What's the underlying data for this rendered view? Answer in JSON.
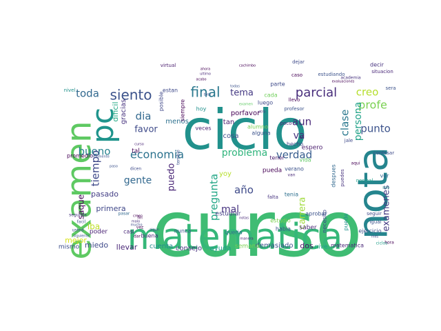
{
  "words": [
    {
      "text": "curso",
      "color": "#3fbc73"
    },
    {
      "text": "ciclo",
      "color": "#21918c"
    },
    {
      "text": "matematica",
      "color": "#35b779"
    },
    {
      "text": "examen",
      "color": "#5ec962"
    },
    {
      "text": "nota",
      "color": "#25858e"
    },
    {
      "text": "pc",
      "color": "#1f948c"
    },
    {
      "text": "siento",
      "color": "#3b528b"
    },
    {
      "text": "final",
      "color": "#2a788e"
    },
    {
      "text": "economia",
      "color": "#2c728e"
    },
    {
      "text": "parcial",
      "color": "#472d7b"
    },
    {
      "text": "bueno",
      "color": "#26828e"
    },
    {
      "text": "toda",
      "color": "#31688e"
    },
    {
      "text": "dia",
      "color": "#31688e"
    },
    {
      "text": "tema",
      "color": "#443983"
    },
    {
      "text": "favor",
      "color": "#3e4a89"
    },
    {
      "text": "problema",
      "color": "#2fb47c"
    },
    {
      "text": "verdad",
      "color": "#365c8d"
    },
    {
      "text": "aun",
      "color": "#482878"
    },
    {
      "text": "va",
      "color": "#46327e"
    },
    {
      "text": "profe",
      "color": "#7ad151"
    },
    {
      "text": "creo",
      "color": "#b5de2b"
    },
    {
      "text": "clase",
      "color": "#2a788e"
    },
    {
      "text": "persona",
      "color": "#1fa187"
    },
    {
      "text": "punto",
      "color": "#3b528b"
    },
    {
      "text": "pregunta",
      "color": "#21a685"
    },
    {
      "text": "carrera",
      "color": "#9fda3a"
    },
    {
      "text": "examenes",
      "color": "#443a83"
    },
    {
      "text": "gente",
      "color": "#31688e"
    },
    {
      "text": "año",
      "color": "#3e4a89"
    },
    {
      "text": "mal",
      "color": "#46337f"
    },
    {
      "text": "tiempo",
      "color": "#3e4989"
    },
    {
      "text": "puedo",
      "color": "#482475"
    },
    {
      "text": "saque",
      "color": "#440154"
    },
    {
      "text": "pasado",
      "color": "#433e85"
    },
    {
      "text": "primera",
      "color": "#3f4788"
    },
    {
      "text": "iba",
      "color": "#bddf26"
    },
    {
      "text": "mejor",
      "color": "#d8e219"
    },
    {
      "text": "miedo",
      "color": "#3e4989"
    },
    {
      "text": "llevar",
      "color": "#482576"
    },
    {
      "text": "cuenta",
      "color": "#228c8d"
    },
    {
      "text": "consejo",
      "color": "#46307e"
    },
    {
      "text": "ayuda",
      "color": "#1e9b8a"
    },
    {
      "text": "demasiado",
      "color": "#3b528b"
    },
    {
      "text": "dos",
      "color": "#471164"
    },
    {
      "text": "nive",
      "color": "#1f9e89"
    },
    {
      "text": "mismo",
      "color": "#3d4d8a"
    },
    {
      "text": "porfavor",
      "color": "#440154"
    },
    {
      "text": "tan",
      "color": "#481b6d"
    },
    {
      "text": "cosa",
      "color": "#3d4e8a"
    },
    {
      "text": "menos",
      "color": "#2d708e"
    },
    {
      "text": "semana",
      "color": "#7ad151"
    },
    {
      "text": "queria",
      "color": "#2d708e"
    },
    {
      "text": "habia",
      "color": "#3b528b"
    },
    {
      "text": "saber",
      "color": "#482475"
    },
    {
      "text": "necesito",
      "color": "#3f4889"
    },
    {
      "text": "despues",
      "color": "#31688e"
    },
    {
      "text": "puede",
      "color": "#21918c"
    },
    {
      "text": "ejercicio",
      "color": "#3b528b"
    },
    {
      "text": "matematica",
      "color": "#482677"
    },
    {
      "text": "espero",
      "color": "#481a6c"
    },
    {
      "text": "yoy",
      "color": "#b5de2b"
    },
    {
      "text": "luego",
      "color": "#3e4a89"
    },
    {
      "text": "alumno",
      "color": "#7ad151"
    },
    {
      "text": "alguna",
      "color": "#3b528b"
    },
    {
      "text": "hecho",
      "color": "#3f4788"
    },
    {
      "text": "tal",
      "color": "#440154"
    },
    {
      "text": "estudiar",
      "color": "#433e85"
    },
    {
      "text": "poder",
      "color": "#482173"
    },
    {
      "text": "pueda",
      "color": "#440154"
    },
    {
      "text": "tenia",
      "color": "#2d708e"
    },
    {
      "text": "vida",
      "color": "#5ec962"
    },
    {
      "text": "cada",
      "color": "#6ece58"
    },
    {
      "text": "parte",
      "color": "#3e4a89"
    },
    {
      "text": "aprobar",
      "color": "#3b528b"
    },
    {
      "text": "dificil",
      "color": "#22a884"
    },
    {
      "text": "gracias",
      "color": "#46327e"
    },
    {
      "text": "veces",
      "color": "#481f70"
    },
    {
      "text": "hoy",
      "color": "#21918c"
    },
    {
      "text": "ver",
      "color": "#31688e"
    },
    {
      "text": "buena",
      "color": "#482878"
    },
    {
      "text": "tener",
      "color": "#481a6c"
    },
    {
      "text": "verano",
      "color": "#3b528b"
    },
    {
      "text": "estudio",
      "color": "#7ad151"
    },
    {
      "text": "promedio",
      "color": "#440154"
    },
    {
      "text": "nunca",
      "color": "#3b528b"
    },
    {
      "text": "decir",
      "color": "#46327e"
    },
    {
      "text": "casi",
      "color": "#482878"
    },
    {
      "text": "virtual",
      "color": "#481b6d"
    },
    {
      "text": "dejar",
      "color": "#3e4a89"
    },
    {
      "text": "sera",
      "color": "#3b528b"
    },
    {
      "text": "estan",
      "color": "#3e4989"
    },
    {
      "text": "posible",
      "color": "#3f4788"
    },
    {
      "text": "situacion",
      "color": "#482677"
    },
    {
      "text": "seguir",
      "color": "#3e4989"
    },
    {
      "text": "caso",
      "color": "#440154"
    },
    {
      "text": "llevo",
      "color": "#440154"
    },
    {
      "text": "confesar",
      "color": "#3e4a89"
    },
    {
      "text": "profesor",
      "color": "#3b528b"
    },
    {
      "text": "estudiando",
      "color": "#3b528b"
    },
    {
      "text": "nivel",
      "color": "#21918c"
    },
    {
      "text": "puedes",
      "color": "#46327e"
    },
    {
      "text": "normal",
      "color": "#1f9e89"
    },
    {
      "text": "fin",
      "color": "#440154"
    },
    {
      "text": "falta",
      "color": "#46337f"
    },
    {
      "text": "dar",
      "color": "#440154"
    },
    {
      "text": "igual",
      "color": "#3b528b"
    },
    {
      "text": "poco",
      "color": "#482475"
    },
    {
      "text": "aqui",
      "color": "#440154"
    },
    {
      "text": "jale",
      "color": "#3e4989"
    },
    {
      "text": "segunda",
      "color": "#46327e"
    },
    {
      "text": "facil",
      "color": "#3b528b"
    },
    {
      "text": "vez",
      "color": "#440154"
    },
    {
      "text": "van",
      "color": "#482878"
    },
    {
      "text": "manera",
      "color": "#482475"
    },
    {
      "text": "siempre",
      "color": "#440154"
    },
    {
      "text": "algun",
      "color": "#3e4989"
    },
    {
      "text": "usted",
      "color": "#3b528b"
    },
    {
      "text": "dicen",
      "color": "#3e4a89"
    },
    {
      "text": "pasar",
      "color": "#31688e"
    },
    {
      "text": "ultimo",
      "color": "#482878"
    },
    {
      "text": "creen",
      "color": "#440154"
    },
    {
      "text": "realmente",
      "color": "#3b528b"
    },
    {
      "text": "vi",
      "color": "#440154"
    },
    {
      "text": "academia",
      "color": "#46327e"
    },
    {
      "text": "otro",
      "color": "#482878"
    },
    {
      "text": "ahora",
      "color": "#440154"
    },
    {
      "text": "todas",
      "color": "#3b528b"
    },
    {
      "text": "ciclos",
      "color": "#1f9e89"
    },
    {
      "text": "mucho",
      "color": "#3e4989"
    },
    {
      "text": "malo",
      "color": "#46327e"
    },
    {
      "text": "hora",
      "color": "#440154"
    },
    {
      "text": "siguiente",
      "color": "#3b528b"
    },
    {
      "text": "curso",
      "color": "#482475"
    },
    {
      "text": "paso",
      "color": "#3b528b"
    },
    {
      "text": "acabo",
      "color": "#440154"
    },
    {
      "text": "terrible",
      "color": "#3b528b"
    },
    {
      "text": "examen",
      "color": "#5ec962"
    },
    {
      "text": "evaluaciones",
      "color": "#440154"
    },
    {
      "text": "bien",
      "color": "#3b528b"
    },
    {
      "text": "notas",
      "color": "#482878"
    },
    {
      "text": "cachimbo",
      "color": "#440154"
    },
    {
      "text": "solo",
      "color": "#1f9e89"
    },
    {
      "text": "mes",
      "color": "#3e4989"
    }
  ]
}
